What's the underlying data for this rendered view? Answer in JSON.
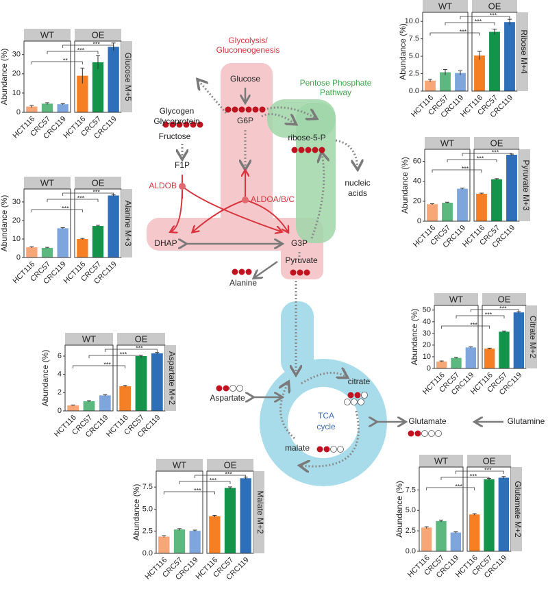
{
  "chart_data": [
    {
      "type": "bar",
      "title": "Glucose M+5",
      "ylabel": "Abundance (%)",
      "categories": [
        "HCT116",
        "CRC57",
        "CRC119"
      ],
      "facets": [
        {
          "name": "WT",
          "colors": [
            "#f7a777",
            "#5cb87e",
            "#7fa6dc"
          ],
          "values": [
            3.0,
            4.5,
            4.2
          ],
          "errors": [
            0.6,
            0.5,
            0.3
          ]
        },
        {
          "name": "OE",
          "colors": [
            "#f57f22",
            "#13944a",
            "#2d6fb8"
          ],
          "values": [
            19,
            26,
            34
          ],
          "errors": [
            4,
            3.5,
            2
          ]
        }
      ],
      "ylim": [
        0,
        37
      ],
      "yticks": [
        0,
        10,
        20,
        30
      ],
      "brackets": [
        "**",
        "***",
        "***"
      ]
    },
    {
      "type": "bar",
      "title": "Alanine M+3",
      "ylabel": "Abundance (%)",
      "categories": [
        "HCT116",
        "CRC57",
        "CRC119"
      ],
      "facets": [
        {
          "name": "WT",
          "colors": [
            "#f7a777",
            "#5cb87e",
            "#7fa6dc"
          ],
          "values": [
            5.5,
            5.2,
            15.8
          ],
          "errors": [
            0.3,
            0.3,
            0.3
          ]
        },
        {
          "name": "OE",
          "colors": [
            "#f57f22",
            "#13944a",
            "#2d6fb8"
          ],
          "values": [
            10,
            17,
            33.5
          ],
          "errors": [
            0.3,
            0.4,
            0.4
          ]
        }
      ],
      "ylim": [
        0,
        37
      ],
      "yticks": [
        0,
        10,
        20,
        30
      ],
      "brackets": [
        "***",
        "***",
        "***"
      ]
    },
    {
      "type": "bar",
      "title": "Ribose M+4",
      "ylabel": "Abundance (%)",
      "categories": [
        "HCT116",
        "CRC57",
        "CRC119"
      ],
      "facets": [
        {
          "name": "WT",
          "colors": [
            "#f7a777",
            "#5cb87e",
            "#7fa6dc"
          ],
          "values": [
            1.5,
            2.7,
            2.6
          ],
          "errors": [
            0.2,
            0.4,
            0.3
          ]
        },
        {
          "name": "OE",
          "colors": [
            "#f57f22",
            "#13944a",
            "#2d6fb8"
          ],
          "values": [
            5.1,
            8.5,
            9.9
          ],
          "errors": [
            0.6,
            0.4,
            0.4
          ]
        }
      ],
      "ylim": [
        0,
        11.3
      ],
      "yticks": [
        {
          "value": 0,
          "label": "0.0"
        },
        2.5,
        {
          "value": 5,
          "label": "5.0"
        },
        7.5,
        {
          "value": 10,
          "label": "10.0"
        }
      ],
      "brackets": [
        "***",
        "***",
        "***"
      ]
    },
    {
      "type": "bar",
      "title": "Pyruvate M+3",
      "ylabel": "Abundance (%)",
      "categories": [
        "HCT116",
        "CRC57",
        "CRC119"
      ],
      "facets": [
        {
          "name": "WT",
          "colors": [
            "#f7a777",
            "#5cb87e",
            "#7fa6dc"
          ],
          "values": [
            17,
            18.5,
            32.5
          ],
          "errors": [
            0.5,
            0.5,
            0.6
          ]
        },
        {
          "name": "OE",
          "colors": [
            "#f57f22",
            "#13944a",
            "#2d6fb8"
          ],
          "values": [
            27.5,
            42,
            66.5
          ],
          "errors": [
            0.6,
            0.6,
            0.7
          ]
        }
      ],
      "ylim": [
        0,
        72
      ],
      "yticks": [
        0,
        20,
        40,
        60
      ],
      "brackets": [
        "***",
        "***",
        "***"
      ]
    },
    {
      "type": "bar",
      "title": "Citrate M+2",
      "ylabel": "Abundance (%)",
      "categories": [
        "HCT116",
        "CRC57",
        "CRC119"
      ],
      "facets": [
        {
          "name": "WT",
          "colors": [
            "#f7a777",
            "#5cb87e",
            "#7fa6dc"
          ],
          "values": [
            6,
            9,
            18
          ],
          "errors": [
            0.4,
            0.5,
            0.5
          ]
        },
        {
          "name": "OE",
          "colors": [
            "#f57f22",
            "#13944a",
            "#2d6fb8"
          ],
          "values": [
            17,
            31.5,
            48
          ],
          "errors": [
            0.4,
            0.6,
            0.6
          ]
        }
      ],
      "ylim": [
        0,
        54
      ],
      "yticks": [
        0,
        10,
        20,
        30,
        40,
        50
      ],
      "brackets": [
        "***",
        "***",
        "***"
      ]
    },
    {
      "type": "bar",
      "title": "Aspartate M+2",
      "ylabel": "Abundance (%)",
      "categories": [
        "HCT116",
        "CRC57",
        "CRC119"
      ],
      "facets": [
        {
          "name": "WT",
          "colors": [
            "#f7a777",
            "#5cb87e",
            "#7fa6dc"
          ],
          "values": [
            0.6,
            1.05,
            1.7
          ],
          "errors": [
            0.05,
            0.07,
            0.08
          ]
        },
        {
          "name": "OE",
          "colors": [
            "#f57f22",
            "#13944a",
            "#2d6fb8"
          ],
          "values": [
            2.7,
            6.0,
            6.3
          ],
          "errors": [
            0.1,
            0.1,
            0.1
          ]
        }
      ],
      "ylim": [
        0,
        7.2
      ],
      "yticks": [
        0,
        2,
        4,
        6
      ],
      "brackets": [
        "***",
        "***",
        "***"
      ]
    },
    {
      "type": "bar",
      "title": "Malate M+2",
      "ylabel": "Abundance (%)",
      "categories": [
        "HCT116",
        "CRC57",
        "CRC119"
      ],
      "facets": [
        {
          "name": "WT",
          "colors": [
            "#f7a777",
            "#5cb87e",
            "#7fa6dc"
          ],
          "values": [
            1.9,
            2.7,
            2.55
          ],
          "errors": [
            0.1,
            0.1,
            0.08
          ]
        },
        {
          "name": "OE",
          "colors": [
            "#f57f22",
            "#13944a",
            "#2d6fb8"
          ],
          "values": [
            4.2,
            7.4,
            8.5
          ],
          "errors": [
            0.1,
            0.12,
            0.12
          ]
        }
      ],
      "ylim": [
        0,
        9.3
      ],
      "yticks": [
        {
          "value": 0,
          "label": "0.0"
        },
        2.5,
        {
          "value": 5,
          "label": "5.0"
        },
        7.5
      ],
      "brackets": [
        "***",
        "***",
        "***"
      ]
    },
    {
      "type": "bar",
      "title": "Glutamate M+2",
      "ylabel": "Abundance (%)",
      "categories": [
        "HCT116",
        "CRC57",
        "CRC119"
      ],
      "facets": [
        {
          "name": "WT",
          "colors": [
            "#f7a777",
            "#5cb87e",
            "#7fa6dc"
          ],
          "values": [
            2.9,
            3.7,
            2.3
          ],
          "errors": [
            0.1,
            0.12,
            0.08
          ]
        },
        {
          "name": "OE",
          "colors": [
            "#f57f22",
            "#13944a",
            "#2d6fb8"
          ],
          "values": [
            4.5,
            8.8,
            9.0
          ],
          "errors": [
            0.1,
            0.12,
            0.15
          ]
        }
      ],
      "ylim": [
        0,
        10.3
      ],
      "yticks": [
        {
          "value": 0,
          "label": "0.0"
        },
        2.5,
        {
          "value": 5,
          "label": "5.0"
        },
        7.5
      ],
      "brackets": [
        "***",
        "***",
        "***"
      ]
    }
  ],
  "diagram": {
    "glycolysis": [
      "Glycolysis/",
      "Gluconeogenesis"
    ],
    "ppp": [
      "Pentose Phosphate",
      "Pathway"
    ],
    "glycogen": [
      "Glycogen",
      "Glycoprotein"
    ],
    "glucose": "Glucose",
    "g6p": "G6P",
    "fructose": "Fructose",
    "f1p": "F1P",
    "aldob": "ALDOB",
    "aldoa": "ALDOA/B/C",
    "ribose": "ribose-5-P",
    "nucleic": [
      "nucleic",
      "acids"
    ],
    "dhap": "DHAP",
    "g3p": "G3P",
    "alanine": "Alanine",
    "pyruvate": "Pyruvate",
    "citrate": "citrate",
    "tca": [
      "TCA",
      "cycle"
    ],
    "aspartate": "Aspartate",
    "malate": "malate",
    "glutamate": "Glutamate",
    "glutamine": "Glutamine"
  }
}
